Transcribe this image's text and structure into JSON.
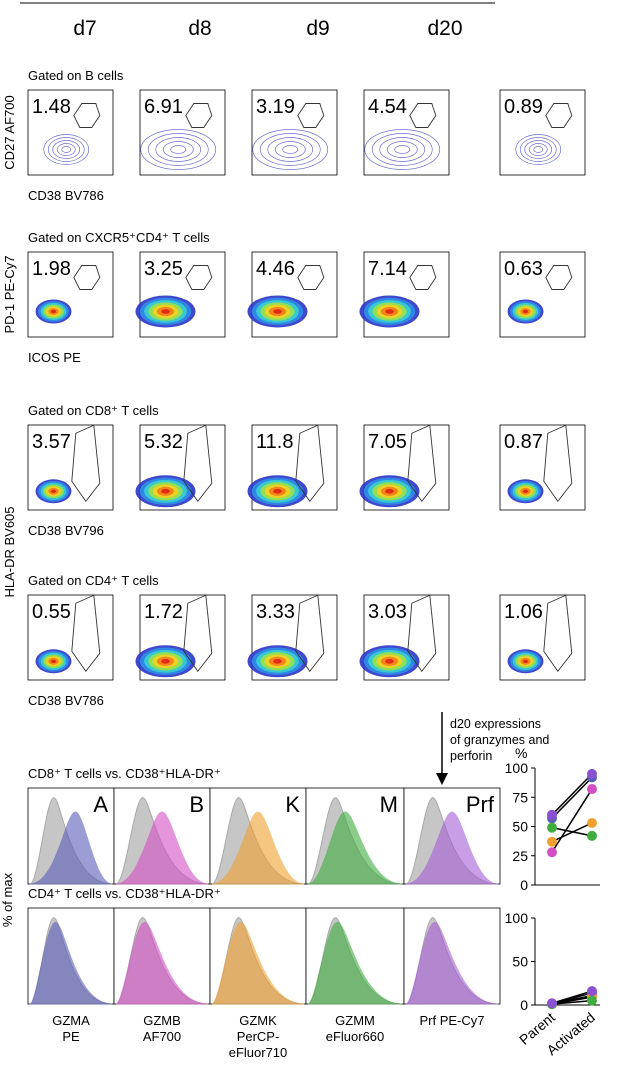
{
  "header": {
    "days": [
      "d7",
      "d8",
      "d9",
      "d20"
    ]
  },
  "flow_rows": [
    {
      "gate": "Gated on B cells",
      "y_label": "CD27 AF700",
      "x_label": "CD38 BV786",
      "values": [
        1.48,
        6.91,
        3.19,
        4.54,
        0.89
      ]
    },
    {
      "gate": "Gated on CXCR5⁺CD4⁺ T cells",
      "y_label": "PD-1 PE-Cy7",
      "x_label": "ICOS PE",
      "values": [
        1.98,
        3.25,
        4.46,
        7.14,
        0.63
      ]
    },
    {
      "gate": "Gated on CD8⁺ T cells",
      "x_label": "CD38 BV796",
      "values": [
        3.57,
        5.32,
        11.8,
        7.05,
        0.87
      ]
    },
    {
      "gate": "Gated on CD4⁺ T cells",
      "x_label": "CD38 BV786",
      "values": [
        0.55,
        1.72,
        3.33,
        3.03,
        1.06
      ]
    }
  ],
  "shared_y_label": "HLA-DR BV605",
  "annotation": "d20 expressions of granzymes and perforin",
  "histograms": {
    "y_label": "% of max",
    "rows": [
      {
        "title": "CD8⁺ T cells vs. CD38⁺HLA-DR⁺"
      },
      {
        "title": "CD4⁺ T cells vs. CD38⁺HLA-DR⁺"
      }
    ],
    "markers": [
      {
        "letter": "A",
        "color": "#5a5db8",
        "label": [
          "GZMA",
          "PE"
        ]
      },
      {
        "letter": "B",
        "color": "#d34fc4",
        "label": [
          "GZMB",
          "AF700"
        ]
      },
      {
        "letter": "K",
        "color": "#f0a030",
        "label": [
          "GZMK",
          "PerCP-",
          "eFluor710"
        ]
      },
      {
        "letter": "M",
        "color": "#3fae3f",
        "label": [
          "GZMM",
          "eFluor660"
        ]
      },
      {
        "letter": "Prf",
        "color": "#a55ed6",
        "label": [
          "Prf PE-Cy7"
        ]
      }
    ]
  },
  "chart_data": [
    {
      "type": "dot",
      "y_label": "%",
      "categories": [
        "Parent",
        "Activated"
      ],
      "ylim": [
        0,
        100
      ],
      "yticks": [
        0,
        25,
        50,
        75,
        100
      ],
      "series": [
        {
          "color": "#5a5db8",
          "values": [
            57,
            92
          ]
        },
        {
          "color": "#d34fc4",
          "values": [
            28,
            82
          ]
        },
        {
          "color": "#f0a030",
          "values": [
            37,
            53
          ]
        },
        {
          "color": "#3fae3f",
          "values": [
            49,
            42
          ]
        },
        {
          "color": "#8a52d0",
          "values": [
            60,
            95
          ]
        }
      ]
    },
    {
      "type": "dot",
      "categories": [
        "Parent",
        "Activated"
      ],
      "ylim": [
        0,
        100
      ],
      "yticks": [
        0,
        50,
        100
      ],
      "series": [
        {
          "color": "#5a5db8",
          "values": [
            1,
            14
          ]
        },
        {
          "color": "#d34fc4",
          "values": [
            1,
            11
          ]
        },
        {
          "color": "#f0a030",
          "values": [
            1,
            9
          ]
        },
        {
          "color": "#3fae3f",
          "values": [
            1,
            5
          ]
        },
        {
          "color": "#8a52d0",
          "values": [
            2,
            16
          ]
        }
      ]
    }
  ]
}
